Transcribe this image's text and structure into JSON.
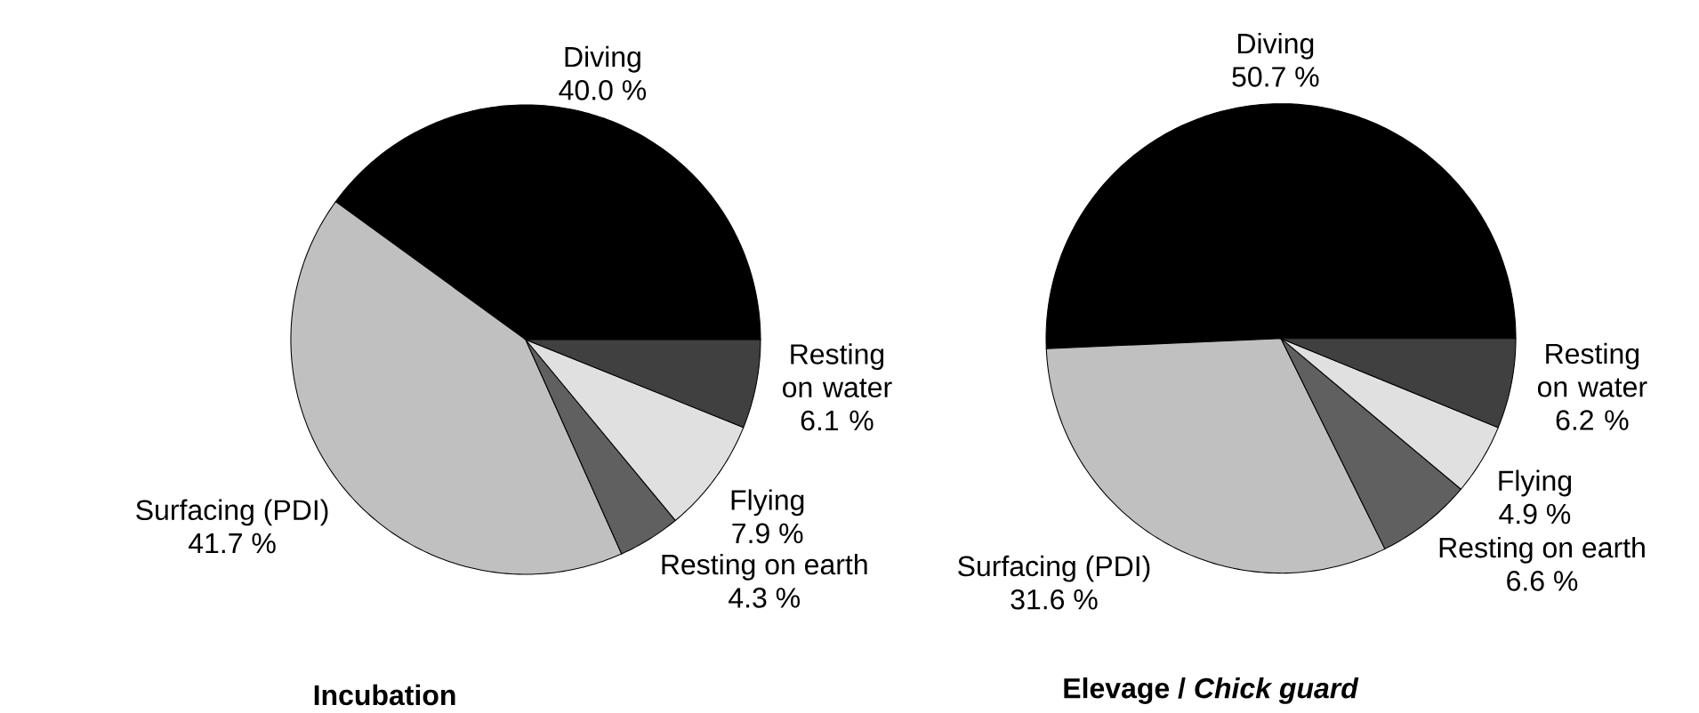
{
  "chart_data": [
    {
      "type": "pie",
      "title": "Incubation",
      "categories": [
        "Diving",
        "Surfacing (PDI)",
        "Resting on earth",
        "Flying",
        "Resting on water"
      ],
      "values": [
        40.0,
        41.7,
        4.3,
        7.9,
        6.1
      ],
      "value_labels": [
        "40.0 %",
        "41.7 %",
        "4.3 %",
        "7.9 %",
        "6.1 %"
      ],
      "colors": [
        "#000000",
        "#c0c0c0",
        "#606060",
        "#e0e0e0",
        "#404040"
      ]
    },
    {
      "type": "pie",
      "title": "Elevage / *Chick guard*",
      "categories": [
        "Diving",
        "Surfacing (PDI)",
        "Resting on earth",
        "Flying",
        "Resting on water"
      ],
      "values": [
        50.7,
        31.6,
        6.6,
        4.9,
        6.2
      ],
      "value_labels": [
        "50.7 %",
        "31.6 %",
        "6.6 %",
        "4.9 %",
        "6.2 %"
      ],
      "colors": [
        "#000000",
        "#c0c0c0",
        "#606060",
        "#e0e0e0",
        "#404040"
      ]
    }
  ]
}
